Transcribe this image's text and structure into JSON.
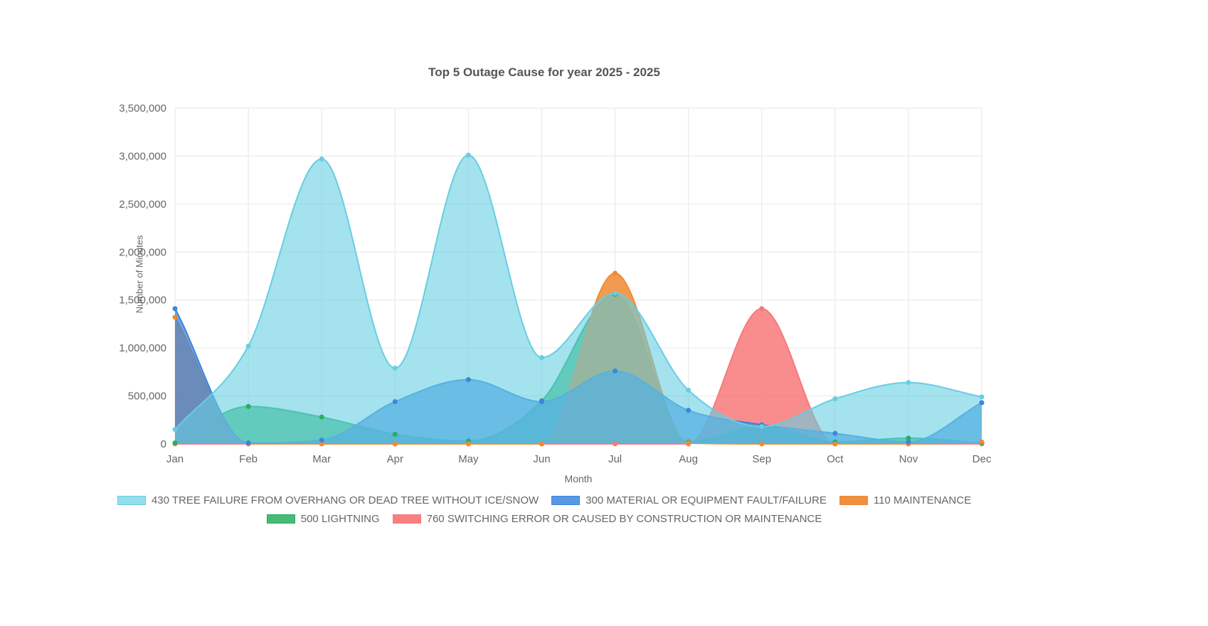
{
  "title": "Top 5 Outage Cause for year 2025 - 2025",
  "chart_data": {
    "type": "area",
    "title": "Top 5 Outage Cause for year 2025 - 2025",
    "xlabel": "Month",
    "ylabel": "Number of Minutes",
    "categories": [
      "Jan",
      "Feb",
      "Mar",
      "Apr",
      "May",
      "Jun",
      "Jul",
      "Aug",
      "Sep",
      "Oct",
      "Nov",
      "Dec"
    ],
    "ylim": [
      0,
      3500000
    ],
    "y_tick_step": 500000,
    "y_tick_labels": [
      "0",
      "500,000",
      "1,000,000",
      "1,500,000",
      "2,000,000",
      "2,500,000",
      "3,000,000",
      "3,500,000"
    ],
    "grid": true,
    "legend_position": "bottom",
    "series": [
      {
        "name": "430 TREE FAILURE FROM OVERHANG OR DEAD TREE WITHOUT ICE/SNOW",
        "color": "#67CEE2",
        "fill_opacity": 0.6,
        "values": [
          150000,
          1020000,
          2970000,
          790000,
          3010000,
          900000,
          1570000,
          560000,
          180000,
          470000,
          640000,
          490000
        ]
      },
      {
        "name": "300 MATERIAL OR EQUIPMENT FAULT/FAILURE",
        "color": "#3D85DD",
        "fill_opacity": 0.75,
        "values": [
          1410000,
          10000,
          40000,
          440000,
          670000,
          440000,
          760000,
          350000,
          200000,
          110000,
          20000,
          430000
        ]
      },
      {
        "name": "110 MAINTENANCE",
        "color": "#EF8A33",
        "fill_opacity": 0.85,
        "values": [
          1320000,
          0,
          0,
          0,
          0,
          0,
          1780000,
          10000,
          0,
          0,
          0,
          20000
        ]
      },
      {
        "name": "500 LIGHTNING",
        "color": "#27AE60",
        "fill_opacity": 0.75,
        "values": [
          10000,
          390000,
          280000,
          100000,
          30000,
          450000,
          1560000,
          20000,
          180000,
          20000,
          60000,
          10000
        ]
      },
      {
        "name": "760 SWITCHING ERROR OR CAUSED BY CONSTRUCTION OR MAINTENANCE",
        "color": "#F87979",
        "fill_opacity": 0.85,
        "values": [
          0,
          0,
          0,
          0,
          0,
          0,
          0,
          0,
          1410000,
          0,
          0,
          0
        ]
      }
    ]
  }
}
